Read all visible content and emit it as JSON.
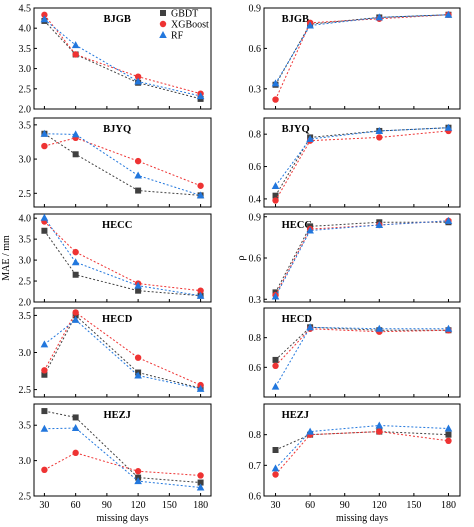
{
  "chart_data": {
    "type": "scatter",
    "x_categories": [
      30,
      60,
      90,
      120,
      150,
      180
    ],
    "xlabel": "missing days",
    "legend": {
      "placement": "top-right of first panel",
      "entries": [
        {
          "name": "GBDT",
          "marker": "square",
          "color": "#404040"
        },
        {
          "name": "XGBoost",
          "marker": "circle",
          "color": "#ee3333"
        },
        {
          "name": "RF",
          "marker": "triangle",
          "color": "#2277dd"
        }
      ]
    },
    "columns": [
      {
        "ylabel": "MAE / mm",
        "panels": [
          {
            "title": "BJGB",
            "ylim": [
              2.0,
              4.5
            ],
            "yticks": [
              "2.0",
              "2.5",
              "3.0",
              "3.5",
              "4.0",
              "4.5"
            ],
            "x": [
              30,
              60,
              120,
              180
            ],
            "series": [
              {
                "name": "GBDT",
                "values": [
                  4.18,
                  3.35,
                  2.65,
                  2.25
                ]
              },
              {
                "name": "XGBoost",
                "values": [
                  4.33,
                  3.35,
                  2.8,
                  2.38
                ]
              },
              {
                "name": "RF",
                "values": [
                  4.22,
                  3.58,
                  2.68,
                  2.32
                ]
              }
            ]
          },
          {
            "title": "BJYQ",
            "ylim": [
              2.3,
              3.6
            ],
            "yticks": [
              "2.5",
              "3.0",
              "3.5"
            ],
            "x": [
              30,
              60,
              120,
              180
            ],
            "series": [
              {
                "name": "GBDT",
                "values": [
                  3.37,
                  3.07,
                  2.54,
                  2.47
                ]
              },
              {
                "name": "XGBoost",
                "values": [
                  3.19,
                  3.31,
                  2.97,
                  2.61
                ]
              },
              {
                "name": "RF",
                "values": [
                  3.37,
                  3.36,
                  2.76,
                  2.47
                ]
              }
            ]
          },
          {
            "title": "HECC",
            "ylim": [
              2.0,
              4.1
            ],
            "yticks": [
              "2.0",
              "2.5",
              "3.0",
              "3.5",
              "4.0"
            ],
            "x": [
              30,
              60,
              120,
              180
            ],
            "series": [
              {
                "name": "GBDT",
                "values": [
                  3.7,
                  2.65,
                  2.27,
                  2.15
                ]
              },
              {
                "name": "XGBoost",
                "values": [
                  3.92,
                  3.19,
                  2.44,
                  2.27
                ]
              },
              {
                "name": "RF",
                "values": [
                  4.01,
                  2.95,
                  2.39,
                  2.15
                ]
              }
            ]
          },
          {
            "title": "HECD",
            "ylim": [
              2.4,
              3.6
            ],
            "yticks": [
              "2.5",
              "3.0",
              "3.5"
            ],
            "x": [
              30,
              60,
              120,
              180
            ],
            "series": [
              {
                "name": "GBDT",
                "values": [
                  2.7,
                  3.5,
                  2.73,
                  2.52
                ]
              },
              {
                "name": "XGBoost",
                "values": [
                  2.76,
                  3.54,
                  2.93,
                  2.56
                ]
              },
              {
                "name": "RF",
                "values": [
                  3.11,
                  3.44,
                  2.69,
                  2.51
                ]
              }
            ]
          },
          {
            "title": "HEZJ",
            "ylim": [
              2.5,
              3.8
            ],
            "yticks": [
              "2.5",
              "3.0",
              "3.5"
            ],
            "x": [
              30,
              60,
              120,
              180
            ],
            "series": [
              {
                "name": "GBDT",
                "values": [
                  3.7,
                  3.61,
                  2.76,
                  2.69
                ]
              },
              {
                "name": "XGBoost",
                "values": [
                  2.87,
                  3.11,
                  2.85,
                  2.79
                ]
              },
              {
                "name": "RF",
                "values": [
                  3.45,
                  3.46,
                  2.71,
                  2.62
                ]
              }
            ]
          }
        ]
      },
      {
        "ylabel": "ρ",
        "panels": [
          {
            "title": "BJGB",
            "ylim": [
              0.15,
              0.9
            ],
            "yticks": [
              "0.3",
              "0.6",
              "0.9"
            ],
            "x": [
              30,
              60,
              120,
              180
            ],
            "series": [
              {
                "name": "GBDT",
                "values": [
                  0.33,
                  0.78,
                  0.83,
                  0.85
                ]
              },
              {
                "name": "XGBoost",
                "values": [
                  0.22,
                  0.79,
                  0.82,
                  0.85
                ]
              },
              {
                "name": "RF",
                "values": [
                  0.34,
                  0.77,
                  0.83,
                  0.85
                ]
              }
            ]
          },
          {
            "title": "BJYQ",
            "ylim": [
              0.35,
              0.9
            ],
            "yticks": [
              "0.4",
              "0.6",
              "0.8"
            ],
            "x": [
              30,
              60,
              120,
              180
            ],
            "series": [
              {
                "name": "GBDT",
                "values": [
                  0.42,
                  0.78,
                  0.82,
                  0.84
                ]
              },
              {
                "name": "XGBoost",
                "values": [
                  0.39,
                  0.76,
                  0.78,
                  0.82
                ]
              },
              {
                "name": "RF",
                "values": [
                  0.48,
                  0.77,
                  0.82,
                  0.84
                ]
              }
            ]
          },
          {
            "title": "HECC",
            "ylim": [
              0.28,
              0.92
            ],
            "yticks": [
              "0.3",
              "0.6",
              "0.9"
            ],
            "x": [
              30,
              60,
              120,
              180
            ],
            "series": [
              {
                "name": "GBDT",
                "values": [
                  0.35,
                  0.83,
                  0.86,
                  0.86
                ]
              },
              {
                "name": "XGBoost",
                "values": [
                  0.33,
                  0.81,
                  0.84,
                  0.87
                ]
              },
              {
                "name": "RF",
                "values": [
                  0.32,
                  0.8,
                  0.84,
                  0.87
                ]
              }
            ]
          },
          {
            "title": "HECD",
            "ylim": [
              0.4,
              1.0
            ],
            "yticks": [
              "0.6",
              "0.8"
            ],
            "x": [
              30,
              60,
              120,
              180
            ],
            "series": [
              {
                "name": "GBDT",
                "values": [
                  0.65,
                  0.87,
                  0.85,
                  0.85
                ]
              },
              {
                "name": "XGBoost",
                "values": [
                  0.61,
                  0.86,
                  0.84,
                  0.85
                ]
              },
              {
                "name": "RF",
                "values": [
                  0.47,
                  0.87,
                  0.86,
                  0.86
                ]
              }
            ]
          },
          {
            "title": "HEZJ",
            "ylim": [
              0.6,
              0.9
            ],
            "yticks": [
              "0.6",
              "0.7",
              "0.8"
            ],
            "x": [
              30,
              60,
              120,
              180
            ],
            "series": [
              {
                "name": "GBDT",
                "values": [
                  0.75,
                  0.8,
                  0.81,
                  0.8
                ]
              },
              {
                "name": "XGBoost",
                "values": [
                  0.67,
                  0.8,
                  0.81,
                  0.78
                ]
              },
              {
                "name": "RF",
                "values": [
                  0.69,
                  0.81,
                  0.83,
                  0.82
                ]
              }
            ]
          }
        ]
      }
    ]
  }
}
